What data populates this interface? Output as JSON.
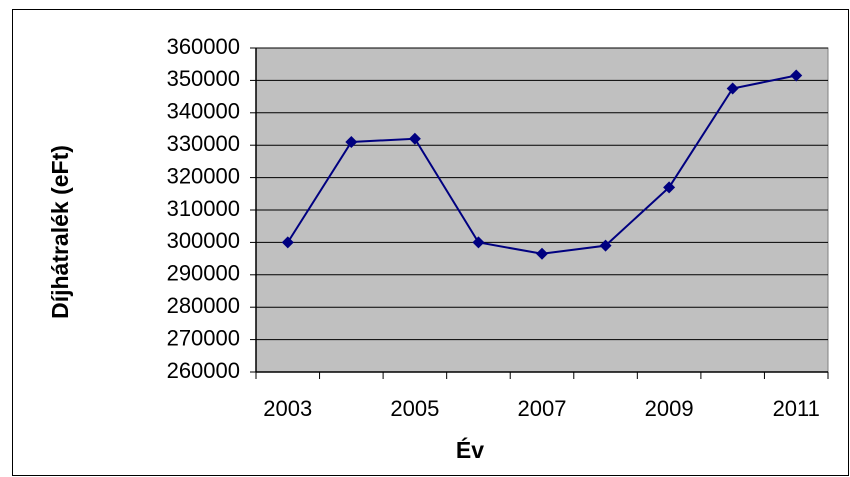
{
  "chart_data": {
    "type": "line",
    "x_label": "Év",
    "y_label": "Díjhátralék (eFt)",
    "categories": [
      "2003",
      null,
      "2005",
      null,
      "2007",
      null,
      "2009",
      null,
      "2011"
    ],
    "series": [
      {
        "name": "Díjhátralék",
        "color": "#000080",
        "values": [
          300000,
          331000,
          332000,
          300000,
          296500,
          299000,
          317000,
          347500,
          351500
        ]
      }
    ],
    "ylim": [
      260000,
      360000
    ],
    "yticks": [
      260000,
      270000,
      280000,
      290000,
      300000,
      310000,
      320000,
      330000,
      340000,
      350000,
      360000
    ],
    "grid": true,
    "plot_background": "#c0c0c0"
  }
}
